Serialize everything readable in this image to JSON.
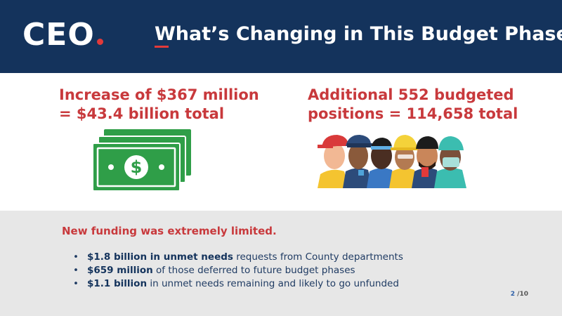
{
  "header": {
    "logo": "CEO",
    "title": "What’s Changing in This Budget Phase"
  },
  "stats": {
    "left": {
      "line1": "Increase of $367 million",
      "line2": "= $43.4 billion total",
      "icon": "money-bills-icon"
    },
    "right": {
      "line1": "Additional 552 budgeted",
      "line2": "positions = 114,658 total",
      "icon": "workers-group-icon"
    }
  },
  "band": {
    "heading": "New funding was extremely limited.",
    "bullets": [
      {
        "bold": "$1.8 billion in unmet needs",
        "rest": " requests from County departments"
      },
      {
        "bold": "$659 million",
        "rest": " of those deferred to future budget phases"
      },
      {
        "bold": "$1.1 billion",
        "rest": " in unmet needs remaining and likely to go unfunded"
      }
    ]
  },
  "page": {
    "current": "2",
    "total": " /10"
  },
  "colors": {
    "navy": "#14335c",
    "accent_red": "#c8393c",
    "band_gray": "#e7e7e7",
    "money_green": "#2f9e48"
  }
}
